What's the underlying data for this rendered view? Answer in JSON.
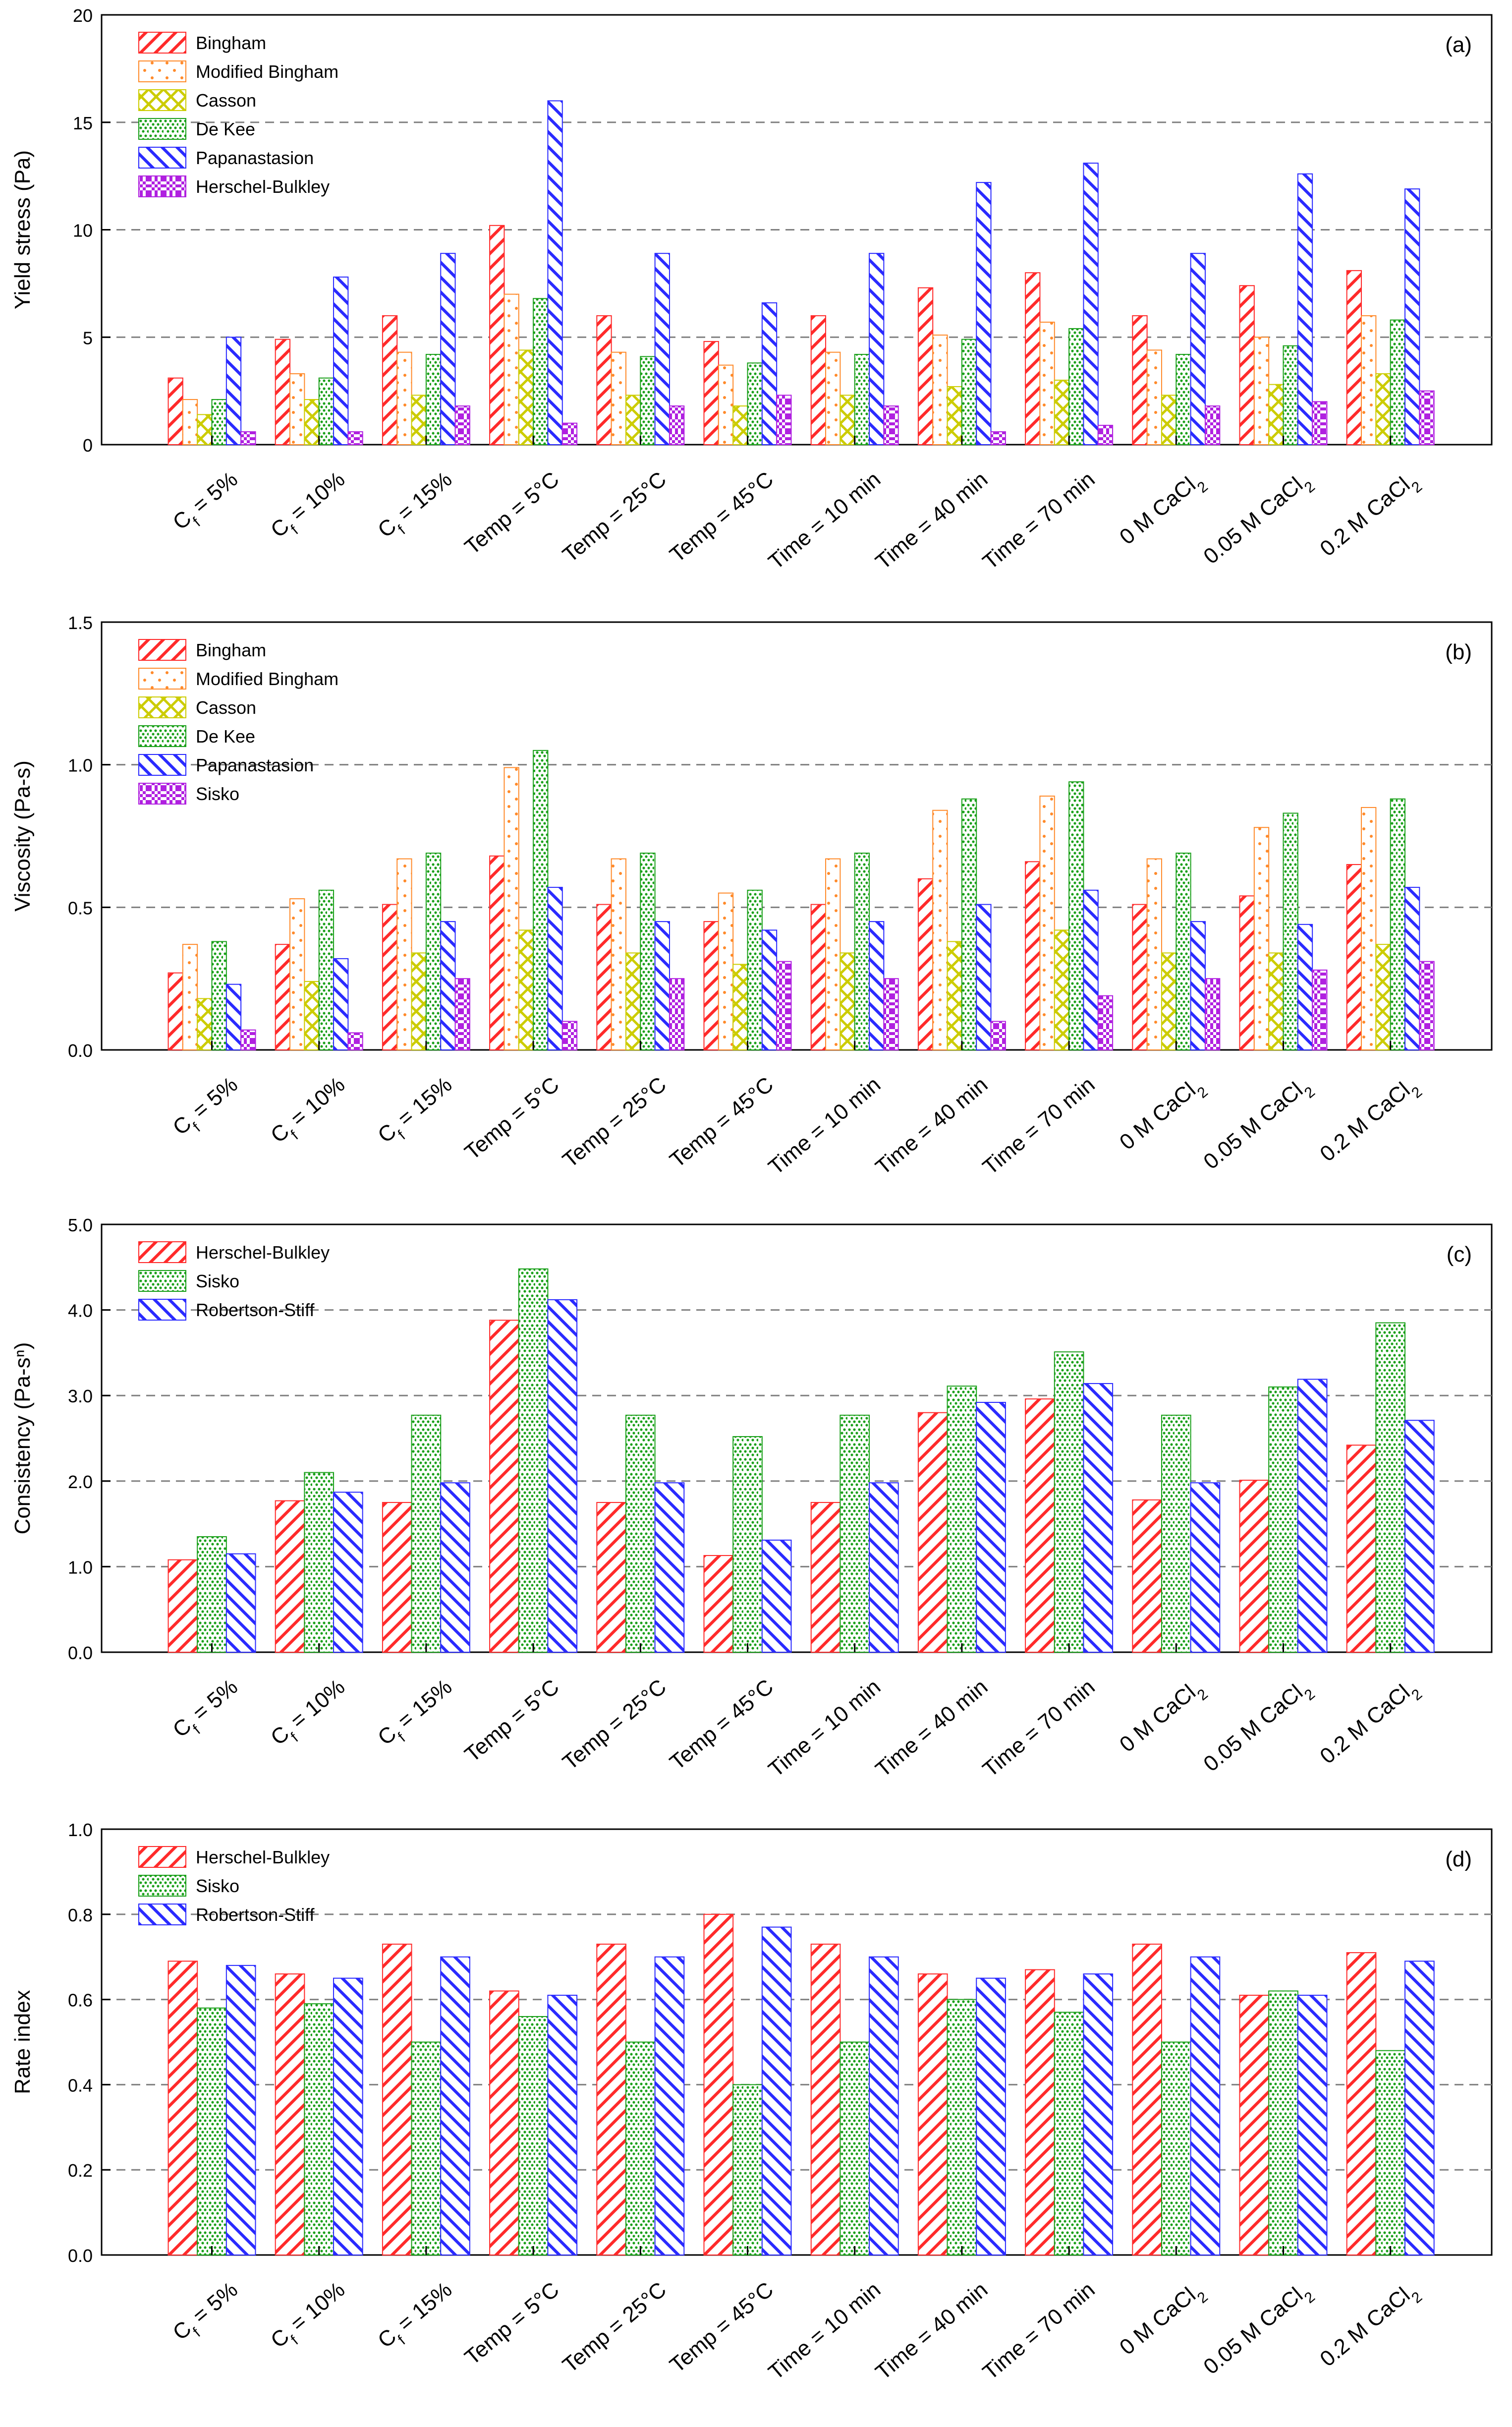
{
  "colors": {
    "red": "#ff2a2a",
    "orange": "#ff8a2a",
    "yellow": "#cccc00",
    "green": "#1aa01a",
    "blue": "#2a2aff",
    "magenta": "#b020e0",
    "grid": "#808080",
    "axis": "#000000"
  },
  "categories": [
    "Cf = 5%",
    "Cf = 10%",
    "Cf = 15%",
    "Temp = 5°C",
    "Temp = 25°C",
    "Temp = 45°C",
    "Time = 10 min",
    "Time = 40 min",
    "Time = 70 min",
    "0 M CaCl2",
    "0.05 M CaCl2",
    "0.2 M CaCl2"
  ],
  "chart_data": [
    {
      "type": "bar",
      "panel_label": "(a)",
      "title": "",
      "xlabel": "",
      "ylabel": "Yield stress (Pa)",
      "ylim": [
        0,
        20
      ],
      "yticks": [
        0,
        5,
        10,
        15,
        20
      ],
      "ytick_labels": [
        "0",
        "5",
        "10",
        "15",
        "20"
      ],
      "grid": "dashed at 5, 10, 15",
      "legend_position": "top-left",
      "series": [
        {
          "name": "Bingham",
          "color": "red",
          "pattern": "diag-wide",
          "values": [
            3.1,
            4.9,
            6.0,
            10.2,
            6.0,
            4.8,
            6.0,
            7.3,
            8.0,
            6.0,
            7.4,
            8.1
          ]
        },
        {
          "name": "Modified Bingham",
          "color": "orange",
          "pattern": "dots-sparse",
          "values": [
            2.1,
            3.3,
            4.3,
            7.0,
            4.3,
            3.7,
            4.3,
            5.1,
            5.7,
            4.4,
            5.0,
            6.0
          ]
        },
        {
          "name": "Casson",
          "color": "yellow",
          "pattern": "cross",
          "values": [
            1.4,
            2.1,
            2.3,
            4.4,
            2.3,
            1.8,
            2.3,
            2.7,
            3.0,
            2.3,
            2.8,
            3.3
          ]
        },
        {
          "name": "De Kee",
          "color": "green",
          "pattern": "dots-dense",
          "values": [
            2.1,
            3.1,
            4.2,
            6.8,
            4.1,
            3.8,
            4.2,
            4.9,
            5.4,
            4.2,
            4.6,
            5.8
          ]
        },
        {
          "name": "Papanastasion",
          "color": "blue",
          "pattern": "diag-back",
          "values": [
            5.0,
            7.8,
            8.9,
            16.0,
            8.9,
            6.6,
            8.9,
            12.2,
            13.1,
            8.9,
            12.6,
            11.9
          ]
        },
        {
          "name": "Herschel-Bulkley",
          "color": "magenta",
          "pattern": "check",
          "values": [
            0.6,
            0.6,
            1.8,
            1.0,
            1.8,
            2.3,
            1.8,
            0.6,
            0.9,
            1.8,
            2.0,
            2.5
          ]
        }
      ]
    },
    {
      "type": "bar",
      "panel_label": "(b)",
      "title": "",
      "xlabel": "",
      "ylabel": "Viscosity (Pa-s)",
      "ylim": [
        0,
        1.5
      ],
      "yticks": [
        0,
        0.5,
        1.0,
        1.5
      ],
      "ytick_labels": [
        "0.0",
        "0.5",
        "1.0",
        "1.5"
      ],
      "grid": "dashed at 0.5, 1.0",
      "legend_position": "top-left",
      "series": [
        {
          "name": "Bingham",
          "color": "red",
          "pattern": "diag-wide",
          "values": [
            0.27,
            0.37,
            0.51,
            0.68,
            0.51,
            0.45,
            0.51,
            0.6,
            0.66,
            0.51,
            0.54,
            0.65
          ]
        },
        {
          "name": "Modified Bingham",
          "color": "orange",
          "pattern": "dots-sparse",
          "values": [
            0.37,
            0.53,
            0.67,
            0.99,
            0.67,
            0.55,
            0.67,
            0.84,
            0.89,
            0.67,
            0.78,
            0.85
          ]
        },
        {
          "name": "Casson",
          "color": "yellow",
          "pattern": "cross",
          "values": [
            0.18,
            0.24,
            0.34,
            0.42,
            0.34,
            0.3,
            0.34,
            0.38,
            0.42,
            0.34,
            0.34,
            0.37
          ]
        },
        {
          "name": "De Kee",
          "color": "green",
          "pattern": "dots-dense",
          "values": [
            0.38,
            0.56,
            0.69,
            1.05,
            0.69,
            0.56,
            0.69,
            0.88,
            0.94,
            0.69,
            0.83,
            0.88
          ]
        },
        {
          "name": "Papanastasion",
          "color": "blue",
          "pattern": "diag-back",
          "values": [
            0.23,
            0.32,
            0.45,
            0.57,
            0.45,
            0.42,
            0.45,
            0.51,
            0.56,
            0.45,
            0.44,
            0.57
          ]
        },
        {
          "name": "Sisko",
          "color": "magenta",
          "pattern": "check",
          "values": [
            0.07,
            0.06,
            0.25,
            0.1,
            0.25,
            0.31,
            0.25,
            0.1,
            0.19,
            0.25,
            0.28,
            0.31
          ]
        }
      ]
    },
    {
      "type": "bar",
      "panel_label": "(c)",
      "title": "",
      "xlabel": "",
      "ylabel": "Consistency (Pa-sⁿ)",
      "ylim": [
        0,
        5
      ],
      "yticks": [
        0,
        1,
        2,
        3,
        4,
        5
      ],
      "ytick_labels": [
        "0.0",
        "1.0",
        "2.0",
        "3.0",
        "4.0",
        "5.0"
      ],
      "grid": "dashed at 1.0, 2.0, 3.0, 4.0",
      "legend_position": "top-left",
      "series": [
        {
          "name": "Herschel-Bulkley",
          "color": "red",
          "pattern": "diag-wide",
          "values": [
            1.08,
            1.77,
            1.75,
            3.88,
            1.75,
            1.13,
            1.75,
            2.8,
            2.96,
            1.78,
            2.01,
            2.42
          ]
        },
        {
          "name": "Sisko",
          "color": "green",
          "pattern": "dots-dense",
          "values": [
            1.35,
            2.1,
            2.77,
            4.48,
            2.77,
            2.52,
            2.77,
            3.11,
            3.51,
            2.77,
            3.1,
            3.85
          ]
        },
        {
          "name": "Robertson-Stiff",
          "color": "blue",
          "pattern": "diag-back",
          "values": [
            1.15,
            1.87,
            1.98,
            4.12,
            1.98,
            1.31,
            1.98,
            2.92,
            3.14,
            1.98,
            3.19,
            2.71
          ]
        }
      ]
    },
    {
      "type": "bar",
      "panel_label": "(d)",
      "title": "",
      "xlabel": "",
      "ylabel": "Rate index",
      "ylim": [
        0,
        1
      ],
      "yticks": [
        0,
        0.2,
        0.4,
        0.6,
        0.8,
        1.0
      ],
      "ytick_labels": [
        "0.0",
        "0.2",
        "0.4",
        "0.6",
        "0.8",
        "1.0"
      ],
      "grid": "dashed at 0.2, 0.4, 0.6, 0.8",
      "legend_position": "top-left",
      "series": [
        {
          "name": "Herschel-Bulkley",
          "color": "red",
          "pattern": "diag-wide",
          "values": [
            0.69,
            0.66,
            0.73,
            0.62,
            0.73,
            0.8,
            0.73,
            0.66,
            0.67,
            0.73,
            0.61,
            0.71
          ]
        },
        {
          "name": "Sisko",
          "color": "green",
          "pattern": "dots-dense",
          "values": [
            0.58,
            0.59,
            0.5,
            0.56,
            0.5,
            0.4,
            0.5,
            0.6,
            0.57,
            0.5,
            0.62,
            0.48
          ]
        },
        {
          "name": "Robertson-Stiff",
          "color": "blue",
          "pattern": "diag-back",
          "values": [
            0.68,
            0.65,
            0.7,
            0.61,
            0.7,
            0.77,
            0.7,
            0.65,
            0.66,
            0.7,
            0.61,
            0.69
          ]
        }
      ]
    }
  ]
}
